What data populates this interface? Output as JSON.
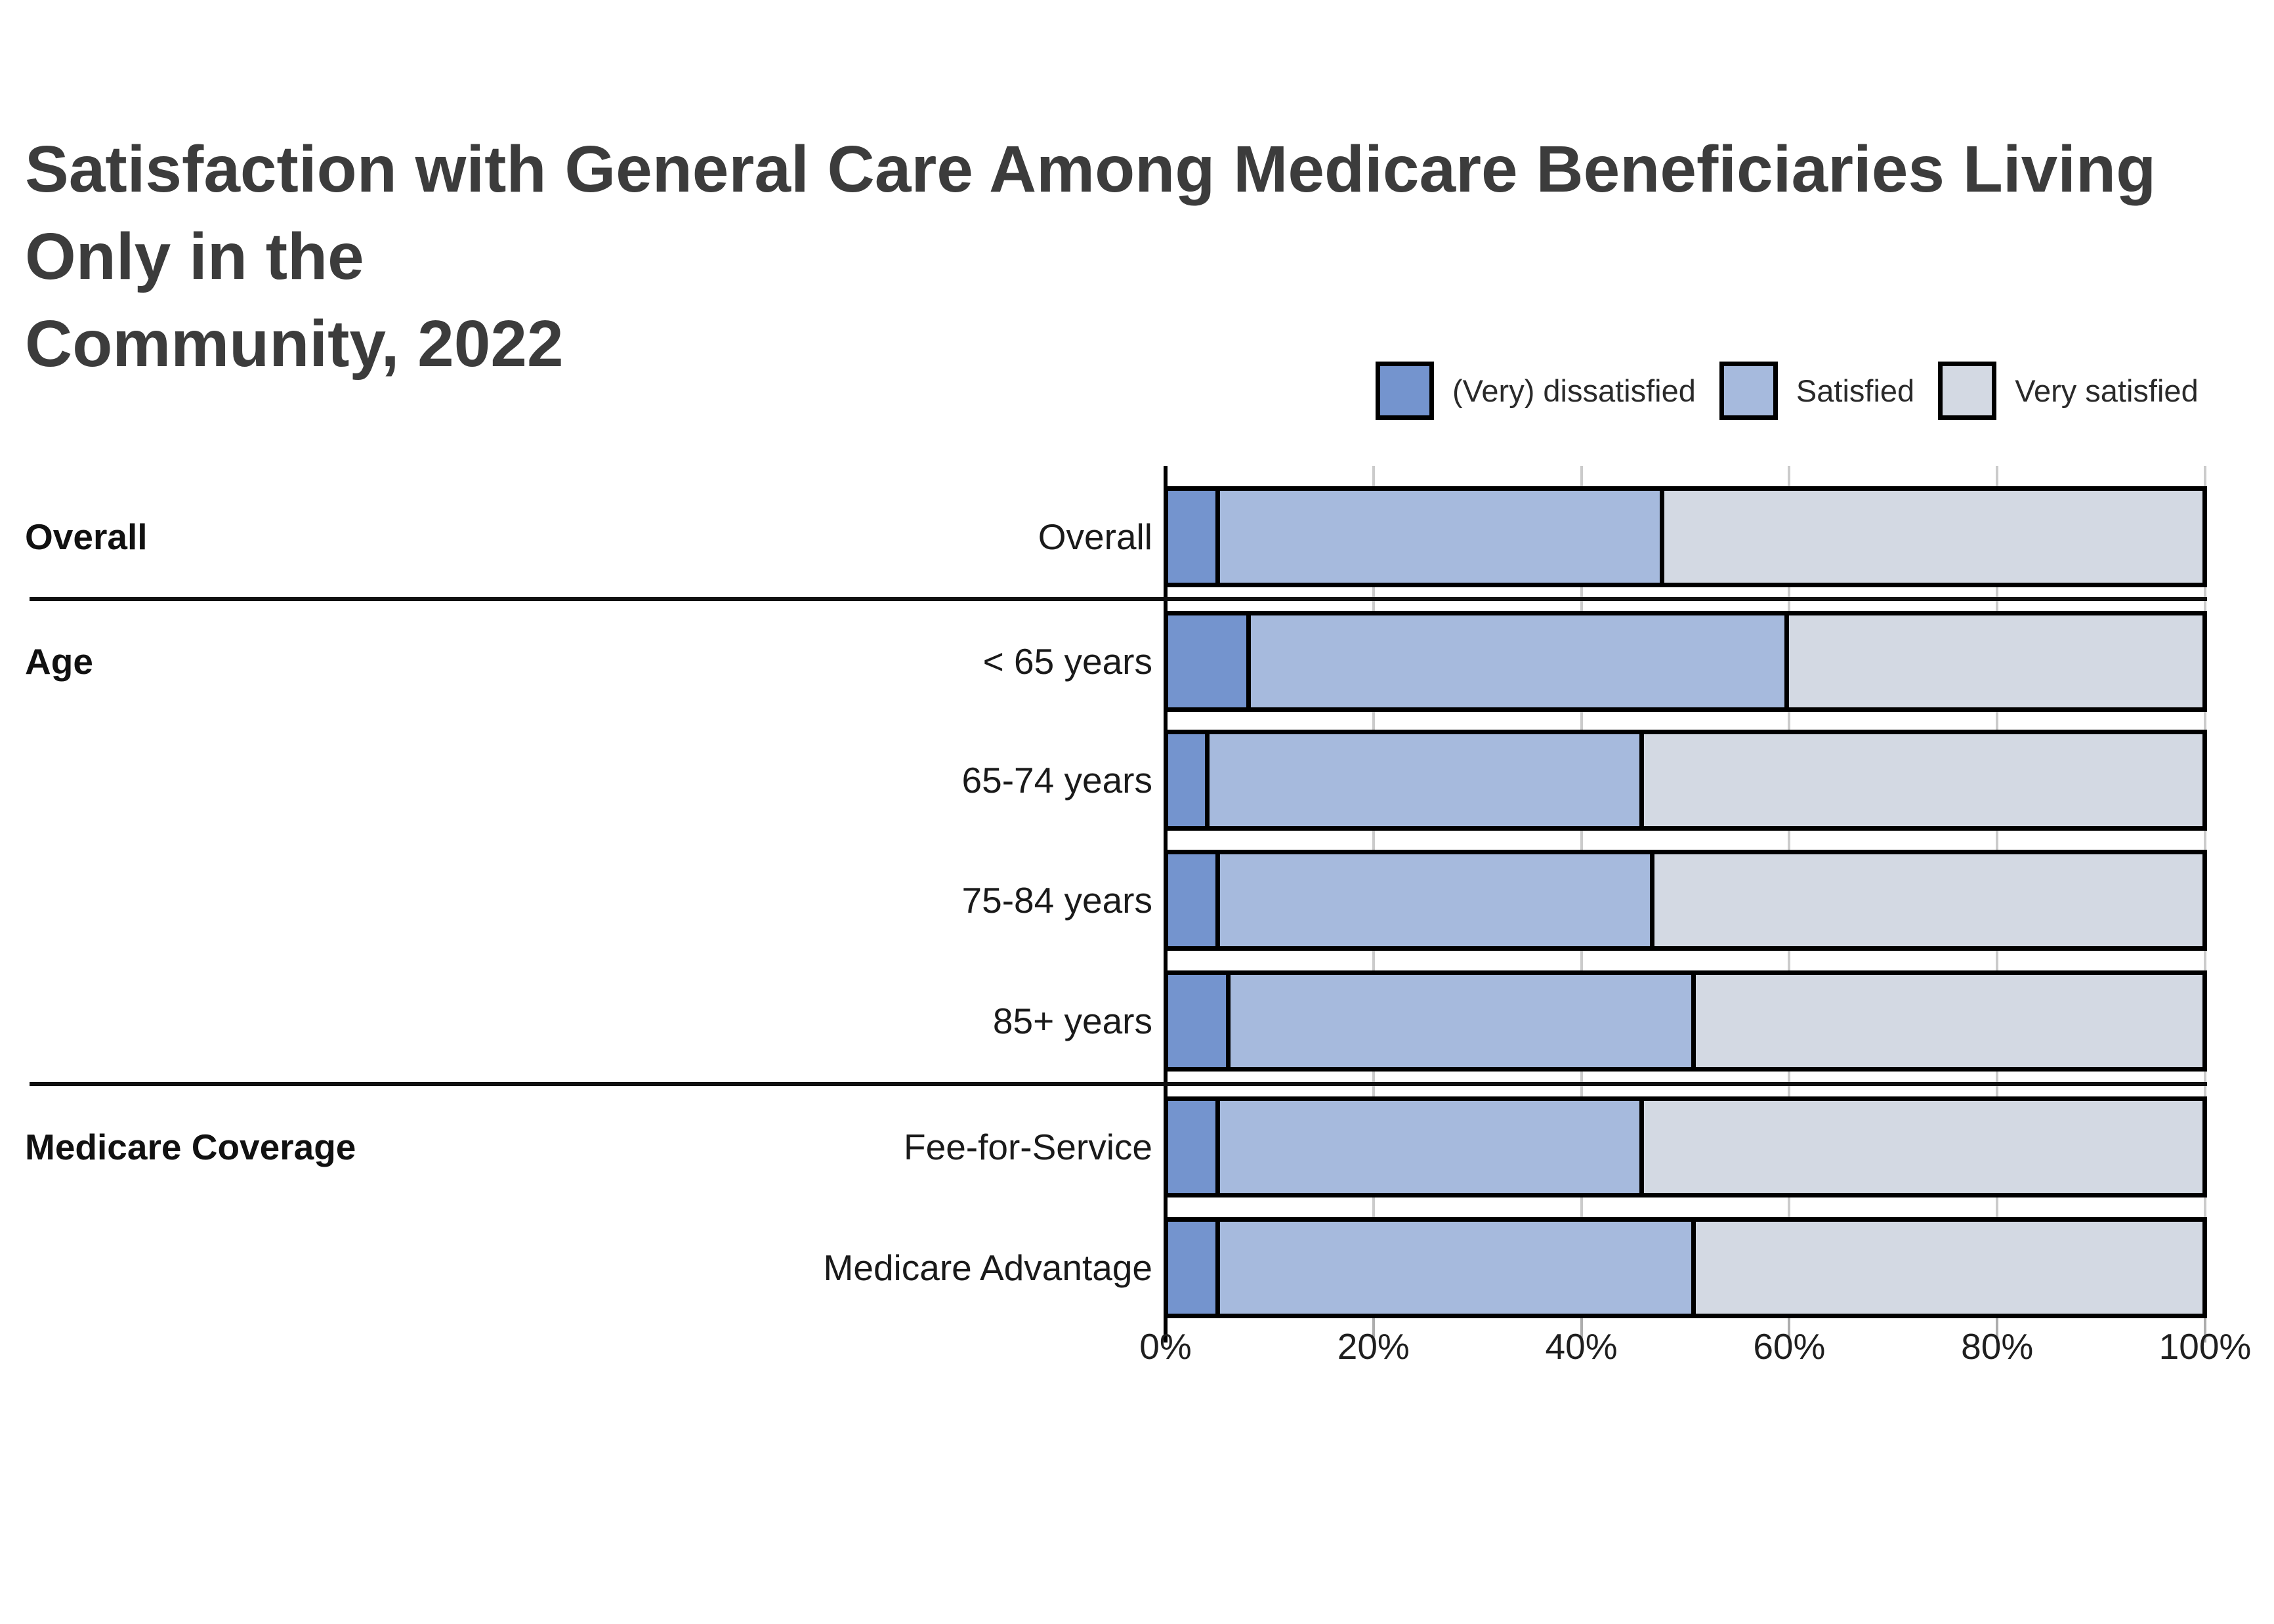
{
  "title": {
    "line1": "Satisfaction with General Care Among Medicare Beneficiaries Living Only in the",
    "line2": "Community, 2022"
  },
  "legend": [
    {
      "label": "(Very) dissatisfied",
      "color": "#7494CE"
    },
    {
      "label": "Satisfied",
      "color": "#A6BADD"
    },
    {
      "label": "Very satisfied",
      "color": "#D3D9E3"
    }
  ],
  "colors": {
    "bar_border": "#000000",
    "axis": "#000000",
    "gridline": "#CBCBCB",
    "divider": "#101010",
    "title_text": "#3C3C3C",
    "label_text": "#1A1A1A"
  },
  "chart_data": {
    "type": "bar",
    "orientation": "horizontal",
    "stacked": true,
    "unit": "percent",
    "title": "Satisfaction with General Care Among Medicare Beneficiaries Living Only in the Community, 2022",
    "categories": [
      "Overall",
      "< 65 years",
      "65-74 years",
      "75-84 years",
      "85+ years",
      "Fee-for-Service",
      "Medicare Advantage"
    ],
    "groups": [
      {
        "label": "Overall",
        "categories": [
          "Overall"
        ]
      },
      {
        "label": "Age",
        "categories": [
          "< 65 years",
          "65-74 years",
          "75-84 years",
          "85+ years"
        ]
      },
      {
        "label": "Medicare Coverage",
        "categories": [
          "Fee-for-Service",
          "Medicare Advantage"
        ]
      }
    ],
    "series": [
      {
        "name": "(Very) dissatisfied",
        "values": [
          5,
          8,
          4,
          5,
          6,
          5,
          5
        ]
      },
      {
        "name": "Satisfied",
        "values": [
          43,
          52,
          42,
          42,
          45,
          41,
          46
        ]
      },
      {
        "name": "Very satisfied",
        "values": [
          52,
          40,
          54,
          53,
          49,
          54,
          49
        ]
      }
    ],
    "x_axis": {
      "tick_labels": [
        "0%",
        "20%",
        "40%",
        "60%",
        "80%",
        "100%"
      ],
      "range": [
        0,
        100
      ],
      "gridlines": true
    },
    "legend_position": "top-right"
  }
}
